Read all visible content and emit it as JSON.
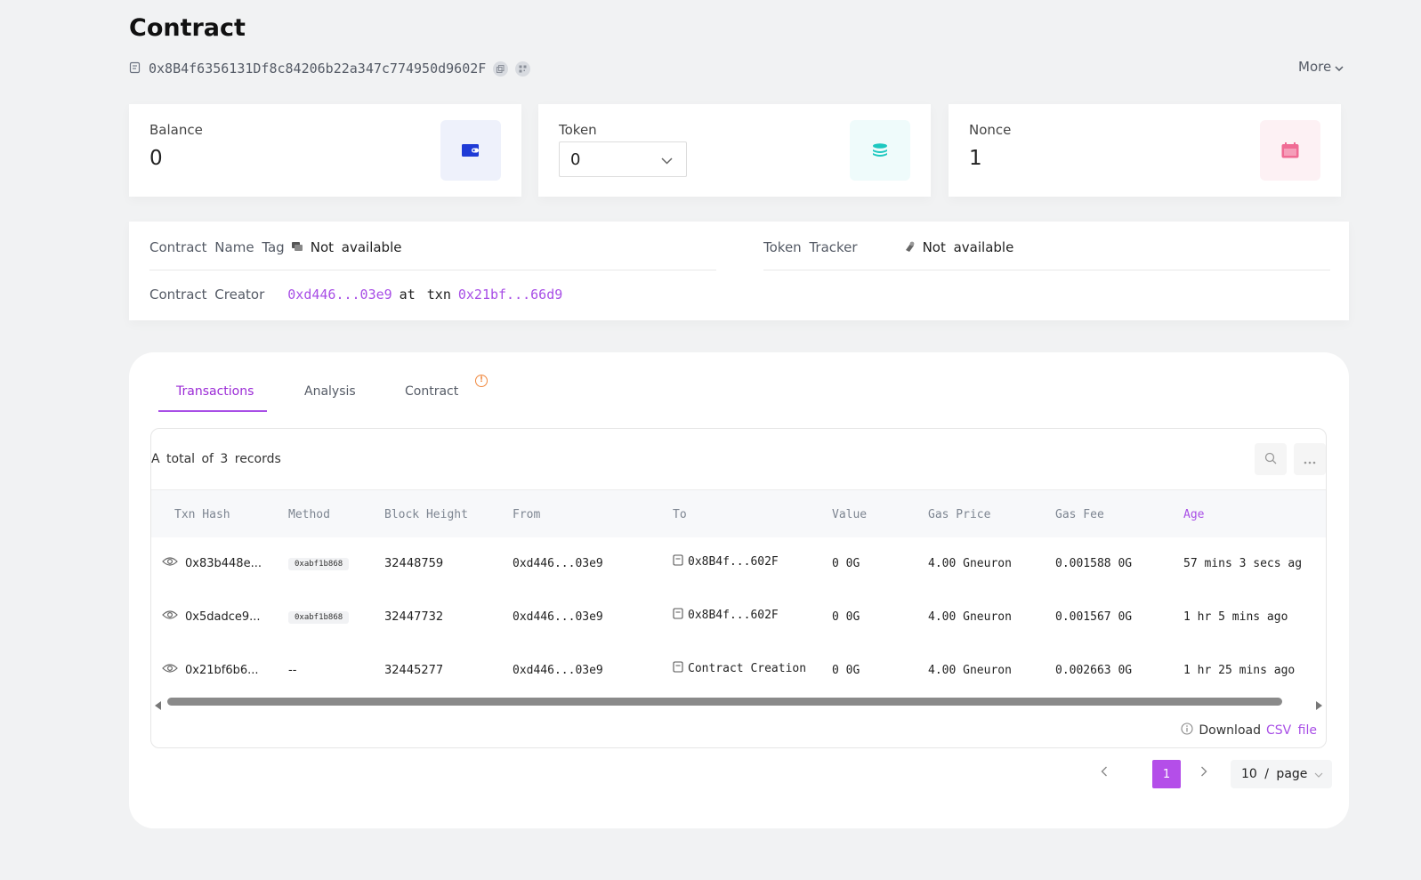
{
  "header": {
    "title": "Contract",
    "address": "0x8B4f6356131Df8c84206b22a347c774950d9602F",
    "more_label": "More"
  },
  "cards": {
    "balance": {
      "label": "Balance",
      "value": "0"
    },
    "token": {
      "label": "Token",
      "selected": "0"
    },
    "nonce": {
      "label": "Nonce",
      "value": "1"
    }
  },
  "info": {
    "name_tag_label": "Contract Name Tag",
    "name_tag_value": "Not available",
    "creator_label": "Contract Creator",
    "creator_address": "0xd446...03e9",
    "creator_at": "at txn",
    "creator_txn": "0x21bf...66d9",
    "token_tracker_label": "Token Tracker",
    "token_tracker_value": "Not available"
  },
  "tabs": [
    "Transactions",
    "Analysis",
    "Contract"
  ],
  "table": {
    "records_text": "A total of 3 records",
    "columns": [
      "Txn Hash",
      "Method",
      "Block Height",
      "From",
      "To",
      "Value",
      "Gas Price",
      "Gas Fee",
      "Age"
    ],
    "rows": [
      {
        "hash": "0x83b448e...",
        "method": "0xabf1b868",
        "block": "32448759",
        "from": "0xd446...03e9",
        "to": "0x8B4f...602F",
        "value": "0 0G",
        "gas_price": "4.00 Gneuron",
        "gas_fee": "0.001588 0G",
        "age": "57 mins 3 secs ag"
      },
      {
        "hash": "0x5dadce9...",
        "method": "0xabf1b868",
        "block": "32447732",
        "from": "0xd446...03e9",
        "to": "0x8B4f...602F",
        "value": "0 0G",
        "gas_price": "4.00 Gneuron",
        "gas_fee": "0.001567 0G",
        "age": "1 hr 5 mins ago"
      },
      {
        "hash": "0x21bf6b6...",
        "method": "--",
        "block": "32445277",
        "from": "0xd446...03e9",
        "to": "Contract Creation",
        "value": "0 0G",
        "gas_price": "4.00 Gneuron",
        "gas_fee": "0.002663 0G",
        "age": "1 hr 25 mins ago"
      }
    ],
    "download_prefix": "Download",
    "download_link": "CSV file"
  },
  "pagination": {
    "current_page": "1",
    "page_size": "10 / page"
  },
  "colors": {
    "accent": "#a84ee6",
    "balance_icon": "#1f3bd6",
    "token_icon": "#1ec8c0",
    "nonce_icon": "#f06b94"
  }
}
